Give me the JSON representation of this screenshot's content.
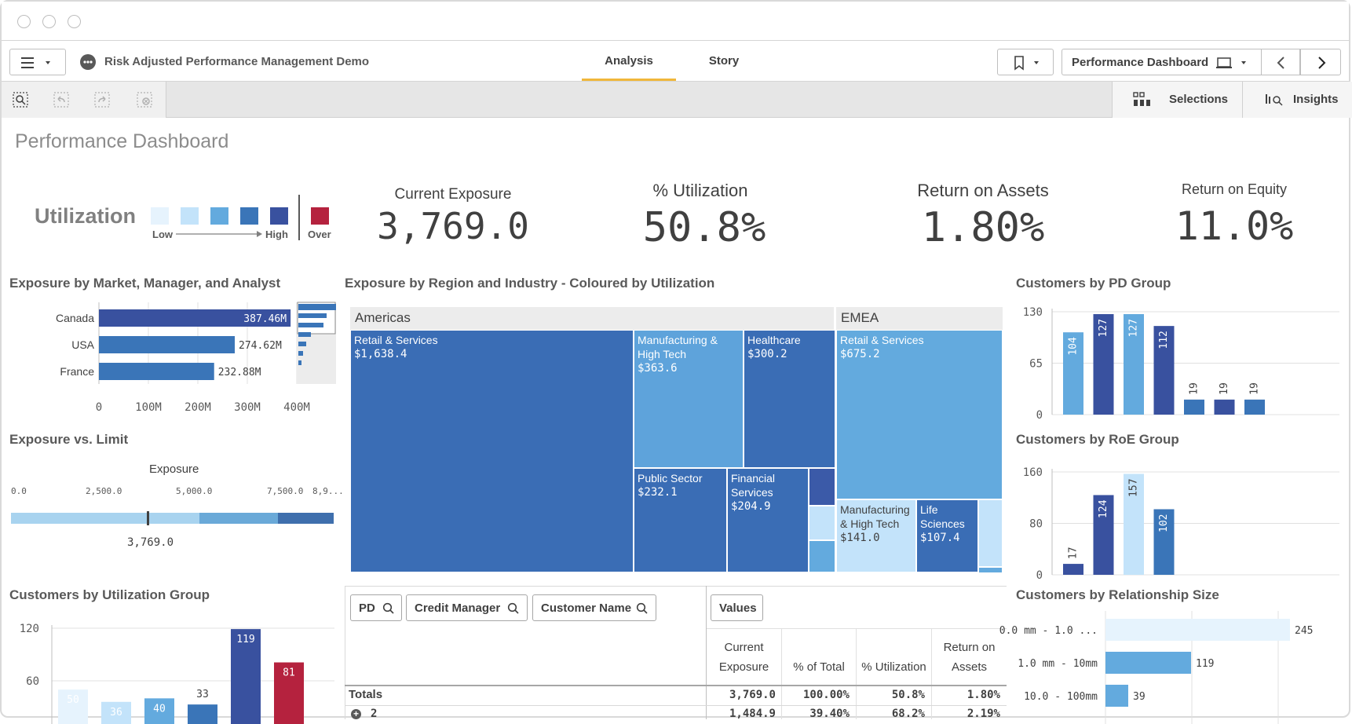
{
  "app": {
    "title": "Risk Adjusted Performance Management Demo",
    "tabs": [
      {
        "label": "Analysis"
      },
      {
        "label": "Story"
      }
    ],
    "sheet_selector": "Performance Dashboard",
    "toolbar": {
      "selections_label": "Selections",
      "insights_label": "Insights"
    }
  },
  "colors": {
    "util_1": "#e6f3fd",
    "util_2": "#c3e3fa",
    "util_3": "#63aade",
    "util_4": "#3a75b8",
    "util_5": "#39519f",
    "over": "#b5223e",
    "grid": "#e0e0e0",
    "accent": "#f0b73b"
  },
  "sheet": {
    "title": "Performance Dashboard"
  },
  "legend": {
    "title": "Utilization",
    "low": "Low",
    "high": "High",
    "over": "Over"
  },
  "kpis": [
    {
      "label": "Current Exposure",
      "value": "3,769.0"
    },
    {
      "label": "% Utilization",
      "value": "50.8%"
    },
    {
      "label": "Return on Assets",
      "value": "1.80%"
    },
    {
      "label": "Return on Equity",
      "value": "11.0%"
    }
  ],
  "charts": {
    "market": {
      "title": "Exposure by Market, Manager, and Analyst"
    },
    "gauge": {
      "title": "Exposure vs. Limit",
      "label": "Exposure",
      "ticks": [
        "0.0",
        "2,500.0",
        "5,000.0",
        "7,500.0",
        "8,9..."
      ],
      "value_label": "3,769.0"
    },
    "util_group": {
      "title": "Customers by Utilization Group"
    },
    "treemap": {
      "title": "Exposure by Region and Industry - Coloured by Utilization",
      "regions": [
        "Americas",
        "EMEA"
      ],
      "cells": [
        {
          "name": "Retail & Services",
          "value": "$1,638.4"
        },
        {
          "name": "Manufacturing & High Tech",
          "value": "$363.6"
        },
        {
          "name": "Healthcare",
          "value": "$300.2"
        },
        {
          "name": "Public Sector",
          "value": "$232.1"
        },
        {
          "name": "Financial Services",
          "value": "$204.9"
        },
        {
          "name": "Retail & Services",
          "value": "$675.2"
        },
        {
          "name": "Manufacturing & High Tech",
          "value": "$141.0"
        },
        {
          "name": "Life Sciences",
          "value": "$107.4"
        }
      ]
    },
    "pd_group": {
      "title": "Customers by PD Group"
    },
    "roe_group": {
      "title": "Customers by RoE Group"
    },
    "rel_size": {
      "title": "Customers by Relationship Size"
    }
  },
  "chart_data": [
    {
      "type": "bar",
      "orientation": "horizontal",
      "title": "Exposure by Market, Manager, and Analyst",
      "categories": [
        "Canada",
        "USA",
        "France"
      ],
      "values": [
        387.46,
        274.62,
        232.88
      ],
      "value_labels": [
        "387.46M",
        "274.62M",
        "232.88M"
      ],
      "xticks": [
        "0",
        "100M",
        "200M",
        "300M",
        "400M"
      ],
      "xlim": [
        0,
        400
      ]
    },
    {
      "type": "bar",
      "title": "Customers by Utilization Group",
      "values": [
        50,
        36,
        40,
        33,
        119,
        81
      ],
      "yticks": [
        "120",
        "60"
      ],
      "ylim": [
        0,
        120
      ]
    },
    {
      "type": "bar",
      "title": "Customers by PD Group",
      "values": [
        104,
        127,
        127,
        112,
        19,
        19,
        19
      ],
      "yticks": [
        "130",
        "65",
        "0"
      ],
      "ylim": [
        0,
        130
      ]
    },
    {
      "type": "bar",
      "title": "Customers by RoE Group",
      "values": [
        17,
        124,
        157,
        102
      ],
      "yticks": [
        "160",
        "80",
        "0"
      ],
      "ylim": [
        0,
        160
      ]
    },
    {
      "type": "bar",
      "orientation": "horizontal",
      "title": "Customers by Relationship Size",
      "categories": [
        "0.0 mm - 1.0 ...",
        "1.0 mm - 10mm",
        "10.0 - 100mm"
      ],
      "values": [
        245,
        119,
        39
      ],
      "xlim": [
        0,
        260
      ]
    }
  ],
  "table": {
    "filters": [
      "PD",
      "Credit Manager",
      "Customer Name"
    ],
    "values_button": "Values",
    "columns": [
      "Current Exposure",
      "% of Total",
      "% Utilization",
      "Return on Assets"
    ],
    "totals": {
      "label": "Totals",
      "values": [
        "3,769.0",
        "100.00%",
        "50.8%",
        "1.80%"
      ]
    },
    "rows": [
      {
        "label": "2",
        "values": [
          "1,484.9",
          "39.40%",
          "68.2%",
          "2.19%"
        ]
      }
    ]
  }
}
